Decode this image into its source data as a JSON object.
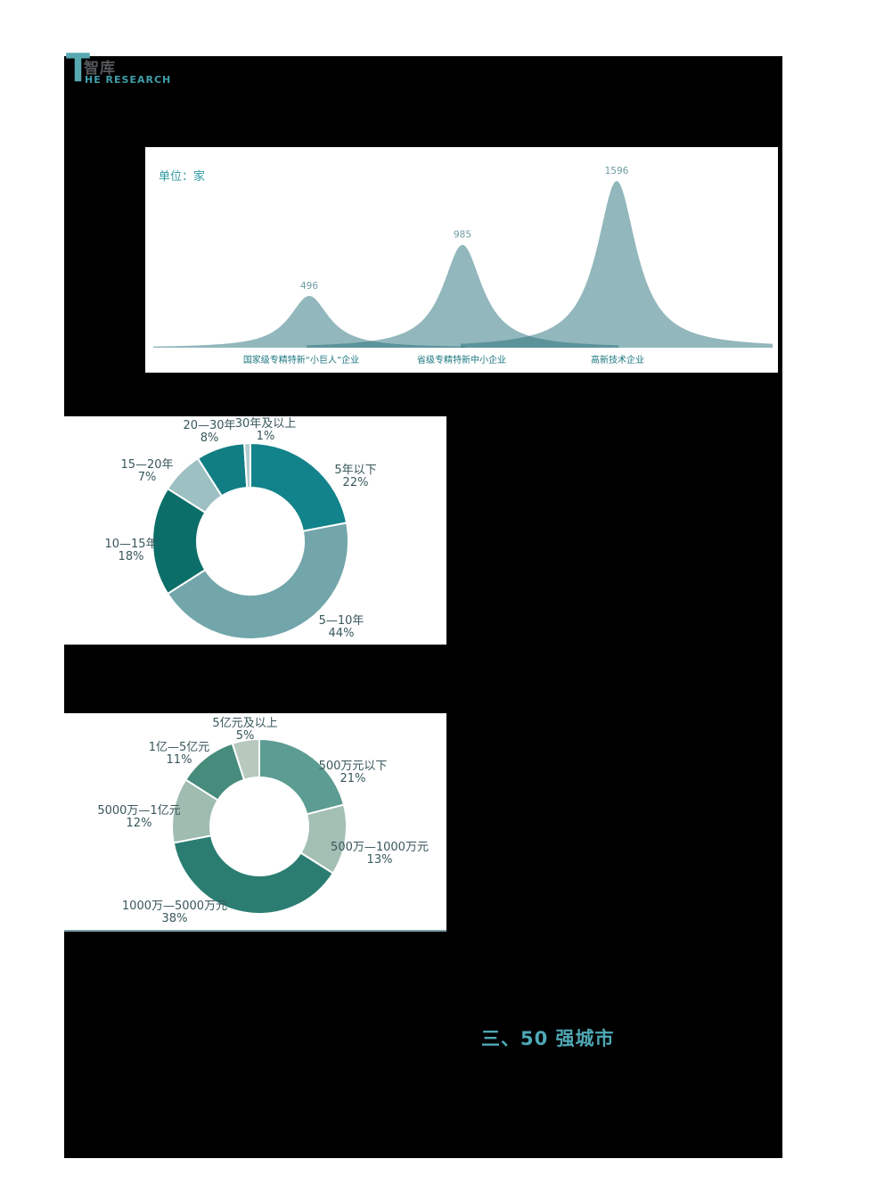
{
  "logo": {
    "t": "T",
    "cn": "智库",
    "en": "HE RESEARCH"
  },
  "section_heading": "三、50 强城市",
  "colors": {
    "page_bg": "#FFFFFF",
    "panel_bg": "#000000",
    "accent_teal": "#4FA8B5",
    "mountain_fill": "#256F79",
    "mountain_overlap": "#5B939B",
    "donut2_border_line": "#7FA3A8"
  },
  "chart_data": [
    {
      "type": "area",
      "id": "enterprise-counts",
      "unit_label": "单位：家",
      "categories": [
        "国家级专精特新“小巨人”企业",
        "省级专精特新中小企业",
        "高新技术企业"
      ],
      "values": [
        496,
        985,
        1596
      ],
      "ylim": [
        0,
        1700
      ],
      "grid": false,
      "legend": "none",
      "fill": "#256F79",
      "fill_opacity": 0.5,
      "value_label_color": "#6D9BA3",
      "category_label_color": "#1B7680",
      "unit_label_color": "#2E99A0"
    },
    {
      "type": "donut",
      "id": "company-age-distribution",
      "legend": "outside-labels",
      "segments": [
        {
          "label": "5年以下",
          "pct": 22,
          "color": "#12838A"
        },
        {
          "label": "5—10年",
          "pct": 44,
          "color": "#72A6AB"
        },
        {
          "label": "10—15年",
          "pct": 18,
          "color": "#0C6E68"
        },
        {
          "label": "15—20年",
          "pct": 7,
          "color": "#9DC0C3"
        },
        {
          "label": "20—30年",
          "pct": 8,
          "color": "#117E84"
        },
        {
          "label": "30年及以上",
          "pct": 1,
          "color": "#B3CCCF"
        }
      ]
    },
    {
      "type": "donut",
      "id": "revenue-distribution",
      "legend": "outside-labels",
      "segments": [
        {
          "label": "500万元以下",
          "pct": 21,
          "color": "#5C9C92"
        },
        {
          "label": "500万—1000万元",
          "pct": 13,
          "color": "#A4BFB3"
        },
        {
          "label": "1000万—5000万元",
          "pct": 38,
          "color": "#2B7D71"
        },
        {
          "label": "5000万—1亿元",
          "pct": 12,
          "color": "#9FBCB0"
        },
        {
          "label": "1亿—5亿元",
          "pct": 11,
          "color": "#478B7D"
        },
        {
          "label": "5亿元及以上",
          "pct": 5,
          "color": "#B7C8BD"
        }
      ]
    }
  ]
}
